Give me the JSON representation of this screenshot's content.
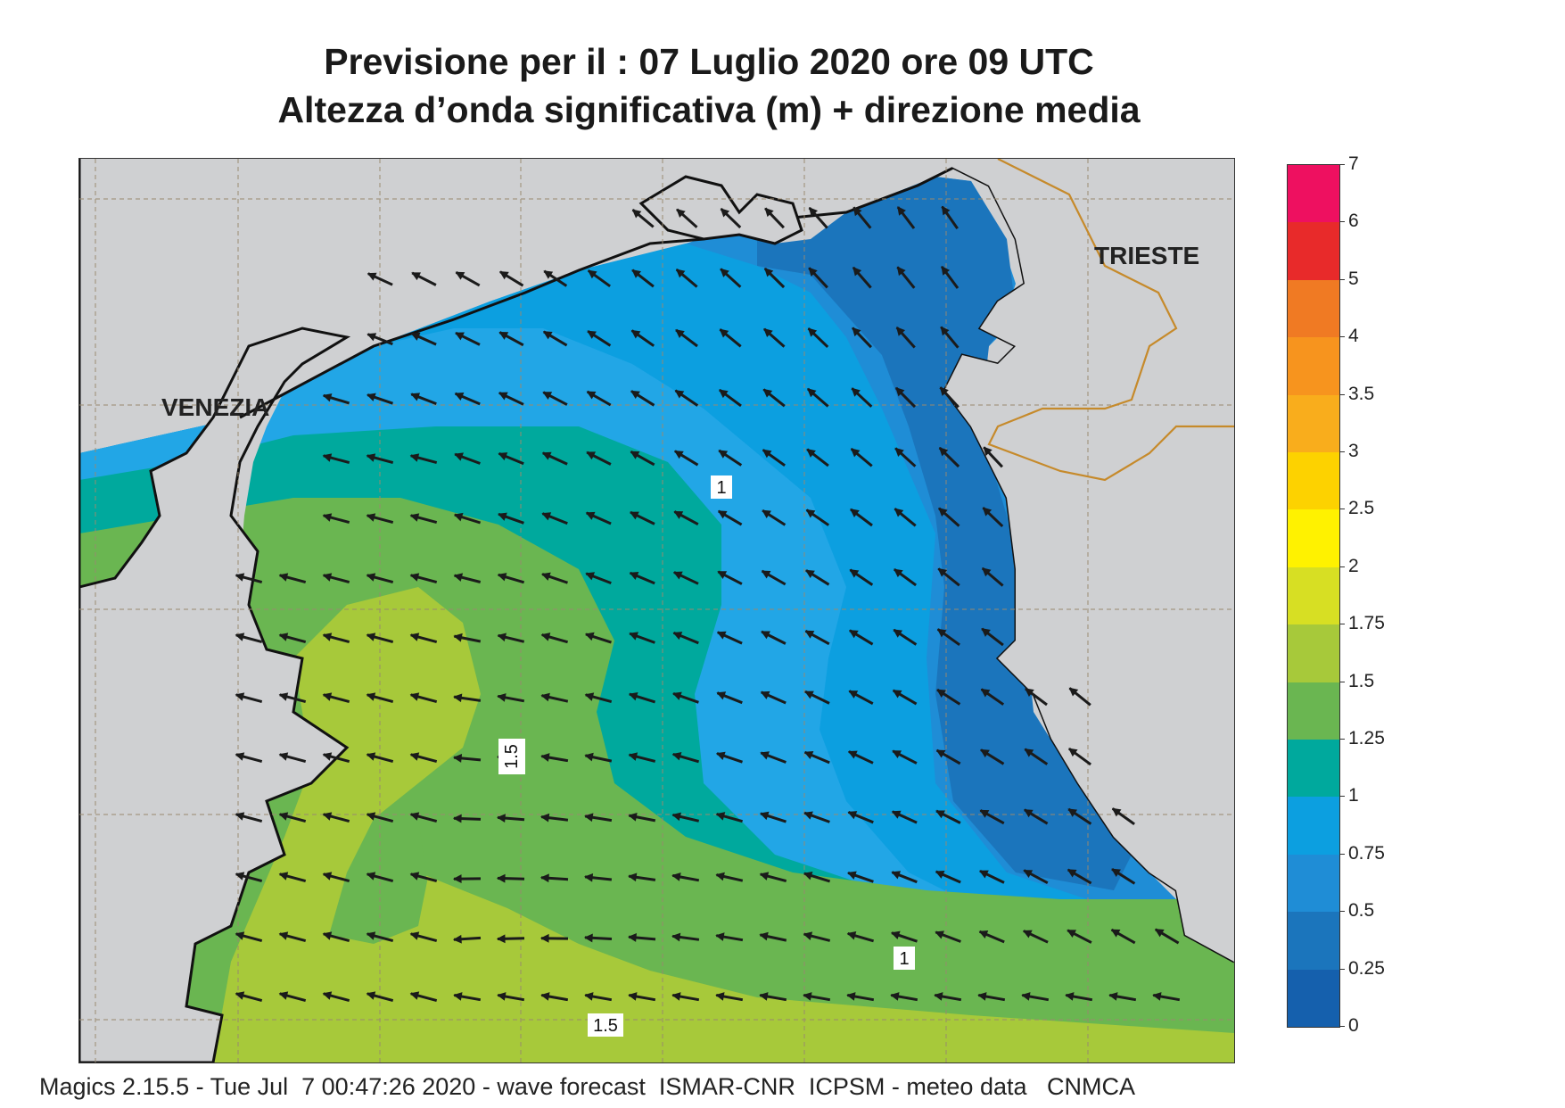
{
  "title": {
    "line1": "Previsione per il  :  07  Luglio   2020   ore 09 UTC",
    "line2": "Altezza d’onda significativa (m) + direzione media"
  },
  "map": {
    "land_color": "#cfd0d2",
    "cities": [
      {
        "name": "VENEZIA"
      },
      {
        "name": "TRIESTE"
      }
    ],
    "contour_labels": [
      "1",
      "1.5",
      "1",
      "1.5"
    ]
  },
  "colorbar": {
    "ticks": [
      "7",
      "6",
      "5",
      "4",
      "3.5",
      "3",
      "2.5",
      "2",
      "1.75",
      "1.5",
      "1.25",
      "1",
      "0.75",
      "0.5",
      "0.25",
      "0"
    ],
    "bands": [
      {
        "from": "6",
        "to": "7",
        "color": "#ee1060"
      },
      {
        "from": "5",
        "to": "6",
        "color": "#e82a2a"
      },
      {
        "from": "4",
        "to": "5",
        "color": "#f07a23"
      },
      {
        "from": "3.5",
        "to": "4",
        "color": "#f7941e"
      },
      {
        "from": "3",
        "to": "3.5",
        "color": "#f9ad1c"
      },
      {
        "from": "2.5",
        "to": "3",
        "color": "#fdd200"
      },
      {
        "from": "2",
        "to": "2.5",
        "color": "#fff200"
      },
      {
        "from": "1.75",
        "to": "2",
        "color": "#d7df23"
      },
      {
        "from": "1.5",
        "to": "1.75",
        "color": "#a7c93a"
      },
      {
        "from": "1.25",
        "to": "1.5",
        "color": "#6ab651"
      },
      {
        "from": "1",
        "to": "1.25",
        "color": "#00a99d"
      },
      {
        "from": "0.75",
        "to": "1",
        "color": "#0c9fe0"
      },
      {
        "from": "0.5",
        "to": "0.75",
        "color": "#1f8dd6"
      },
      {
        "from": "0.25",
        "to": "0.5",
        "color": "#1b75bc"
      },
      {
        "from": "0",
        "to": "0.25",
        "color": "#1560ad"
      }
    ]
  },
  "footer": "Magics 2.15.5 - Tue Jul  7 00:47:26 2020 - wave forecast  ISMAR-CNR  ICPSM - meteo data   CNMCA"
}
